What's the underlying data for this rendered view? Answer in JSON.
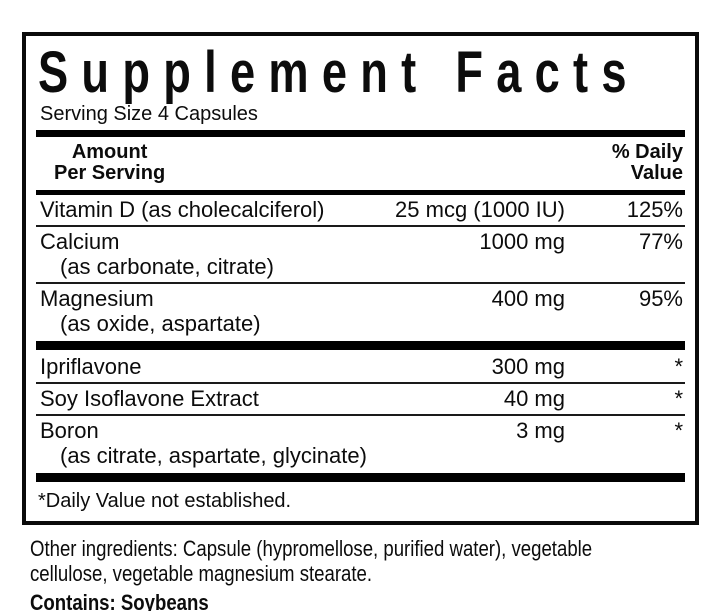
{
  "page": {
    "background": "#ffffff",
    "ink": "#0c0c0c"
  },
  "label": {
    "title": "Supplement Facts",
    "serving_size": "Serving Size 4 Capsules",
    "header": {
      "amount_line1": "Amount",
      "amount_line2": "Per Serving",
      "dv_line1": "% Daily",
      "dv_line2": "Value"
    },
    "rows": [
      {
        "name": "Vitamin D (as cholecalciferol)",
        "sub": "",
        "amount": "25 mcg (1000 IU)",
        "dv": "125%"
      },
      {
        "name": "Calcium",
        "sub": "(as carbonate, citrate)",
        "amount": "1000 mg",
        "dv": "77%"
      },
      {
        "name": "Magnesium",
        "sub": "(as oxide, aspartate)",
        "amount": "400 mg",
        "dv": "95%"
      },
      {
        "name": "Ipriflavone",
        "sub": "",
        "amount": "300 mg",
        "dv": "*"
      },
      {
        "name": "Soy Isoflavone Extract",
        "sub": "",
        "amount": "40 mg",
        "dv": "*"
      },
      {
        "name": "Boron",
        "sub": "(as citrate, aspartate, glycinate)",
        "amount": "3 mg",
        "dv": "*"
      }
    ],
    "footnote": "*Daily Value not established."
  },
  "footer": {
    "other_ingredients": "Other ingredients: Capsule (hypromellose, purified water), vegetable cellulose, vegetable magnesium stearate.",
    "contains": "Contains: Soybeans"
  }
}
